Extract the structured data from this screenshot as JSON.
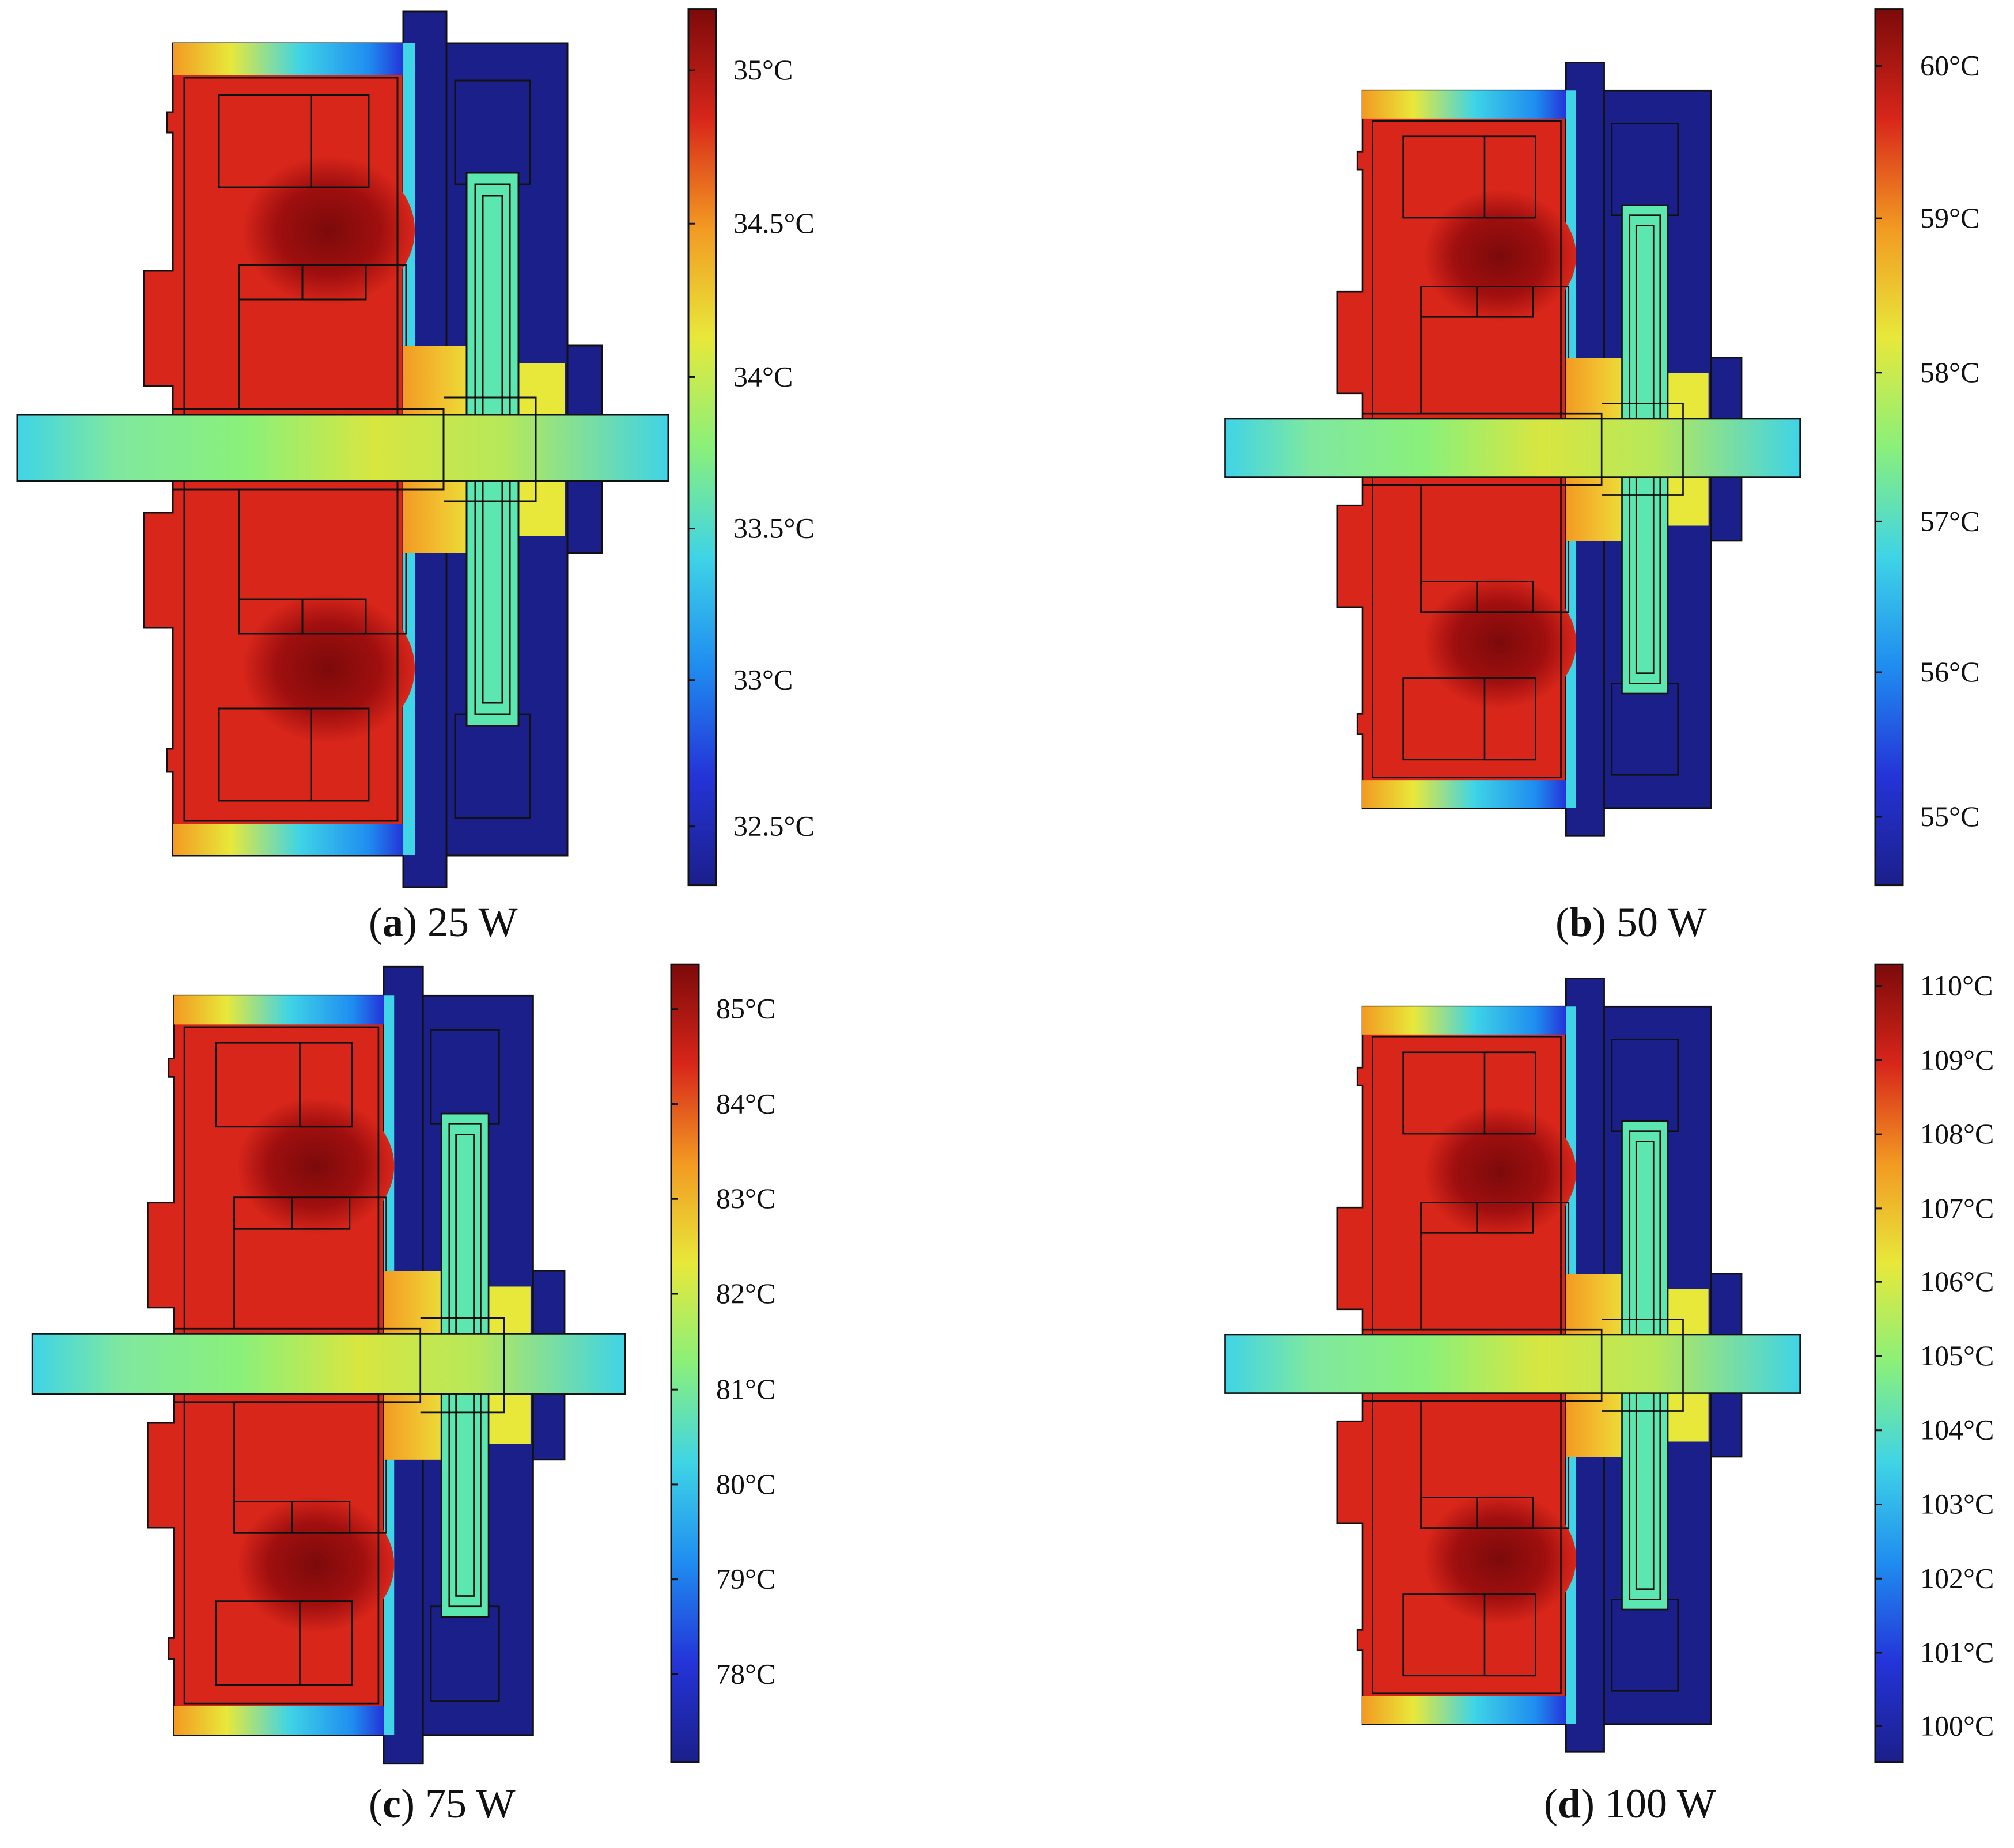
{
  "colormap": [
    "#1b1f8a",
    "#2434d8",
    "#1f8df0",
    "#3fd4e6",
    "#8af07a",
    "#e8e83a",
    "#f29a22",
    "#d8261a",
    "#7c0a0a"
  ],
  "panels": [
    {
      "id": "a",
      "letter": "a",
      "power": "25 W",
      "ticks": [
        "35°C",
        "34.5°C",
        "34°C",
        "33.5°C",
        "33°C",
        "32.5°C"
      ],
      "tick_fracs": [
        0.07,
        0.245,
        0.42,
        0.593,
        0.766,
        0.933
      ]
    },
    {
      "id": "b",
      "letter": "b",
      "power": "50 W",
      "ticks": [
        "60°C",
        "59°C",
        "58°C",
        "57°C",
        "56°C",
        "55°C"
      ],
      "tick_fracs": [
        0.065,
        0.239,
        0.415,
        0.585,
        0.757,
        0.922
      ]
    },
    {
      "id": "c",
      "letter": "c",
      "power": "75 W",
      "ticks": [
        "85°C",
        "84°C",
        "83°C",
        "82°C",
        "81°C",
        "80°C",
        "79°C",
        "78°C"
      ],
      "tick_fracs": [
        0.056,
        0.175,
        0.294,
        0.413,
        0.533,
        0.652,
        0.771,
        0.89
      ]
    },
    {
      "id": "d",
      "letter": "d",
      "power": "100 W",
      "ticks": [
        "110°C",
        "109°C",
        "108°C",
        "107°C",
        "106°C",
        "105°C",
        "104°C",
        "103°C",
        "102°C",
        "101°C",
        "100°C"
      ],
      "tick_fracs": [
        0.027,
        0.12,
        0.213,
        0.306,
        0.398,
        0.491,
        0.584,
        0.677,
        0.77,
        0.863,
        0.955
      ]
    }
  ]
}
